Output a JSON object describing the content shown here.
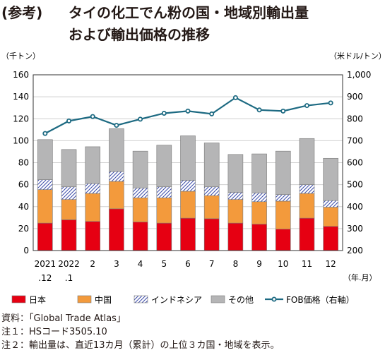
{
  "title": {
    "prefix": "(参考)",
    "line1": "タイの化工でん粉の国・地域別輸出量",
    "line2": "および輸出価格の推移"
  },
  "chart_data": {
    "type": "bar",
    "stacked": true,
    "left_unit": "（千トン）",
    "right_unit": "（米ドル/トン）",
    "x_unit": "（年.月）",
    "categories": [
      [
        "2021",
        ".12"
      ],
      [
        "2022",
        ".1"
      ],
      [
        "2",
        ""
      ],
      [
        "3",
        ""
      ],
      [
        "4",
        ""
      ],
      [
        "5",
        ""
      ],
      [
        "6",
        ""
      ],
      [
        "7",
        ""
      ],
      [
        "8",
        ""
      ],
      [
        "9",
        ""
      ],
      [
        "10",
        ""
      ],
      [
        "11",
        ""
      ],
      [
        "12",
        ""
      ]
    ],
    "ylim": [
      0,
      160
    ],
    "yticks": [
      "0",
      "20",
      "40",
      "60",
      "80",
      "100",
      "120",
      "140",
      "160"
    ],
    "y2lim": [
      200,
      1000
    ],
    "y2ticks": [
      "200",
      "300",
      "400",
      "500",
      "600",
      "700",
      "800",
      "900",
      "1,000"
    ],
    "series": [
      {
        "name": "日本",
        "color": "#e60012",
        "pattern": "solid",
        "values": [
          25,
          28,
          26.5,
          38,
          26,
          25,
          29.5,
          29,
          25,
          24,
          19.5,
          29.5,
          22
        ]
      },
      {
        "name": "中国",
        "color": "#f39a3c",
        "pattern": "solid",
        "values": [
          30.5,
          18.5,
          25.5,
          25,
          22,
          23,
          24.5,
          21,
          21.5,
          20.5,
          25.5,
          22.5,
          17.5
        ]
      },
      {
        "name": "インドネシア",
        "color": "#2e3192",
        "pattern": "hatch",
        "values": [
          9,
          11.5,
          9,
          9,
          9,
          10,
          10,
          8,
          6.5,
          8,
          6,
          8,
          6
        ]
      },
      {
        "name": "その他",
        "color": "#b5b5b6",
        "pattern": "solid",
        "values": [
          36.5,
          34,
          33.5,
          39,
          33.5,
          38,
          40.5,
          40,
          34.5,
          35.5,
          39.5,
          42,
          38.5
        ]
      }
    ],
    "line": {
      "name": "FOB価格（右軸）",
      "color": "#1d6a82",
      "values": [
        733,
        790,
        810,
        770,
        798,
        825,
        835,
        822,
        896,
        840,
        835,
        860,
        872
      ]
    },
    "grid": true,
    "legend": "bottom"
  },
  "notes": [
    "資料：「Global Trade Atlas」",
    "注１：HSコード3505.10",
    "注２：輸出量は、直近13カ月（累計）の上位３カ国・地域を表示。"
  ]
}
